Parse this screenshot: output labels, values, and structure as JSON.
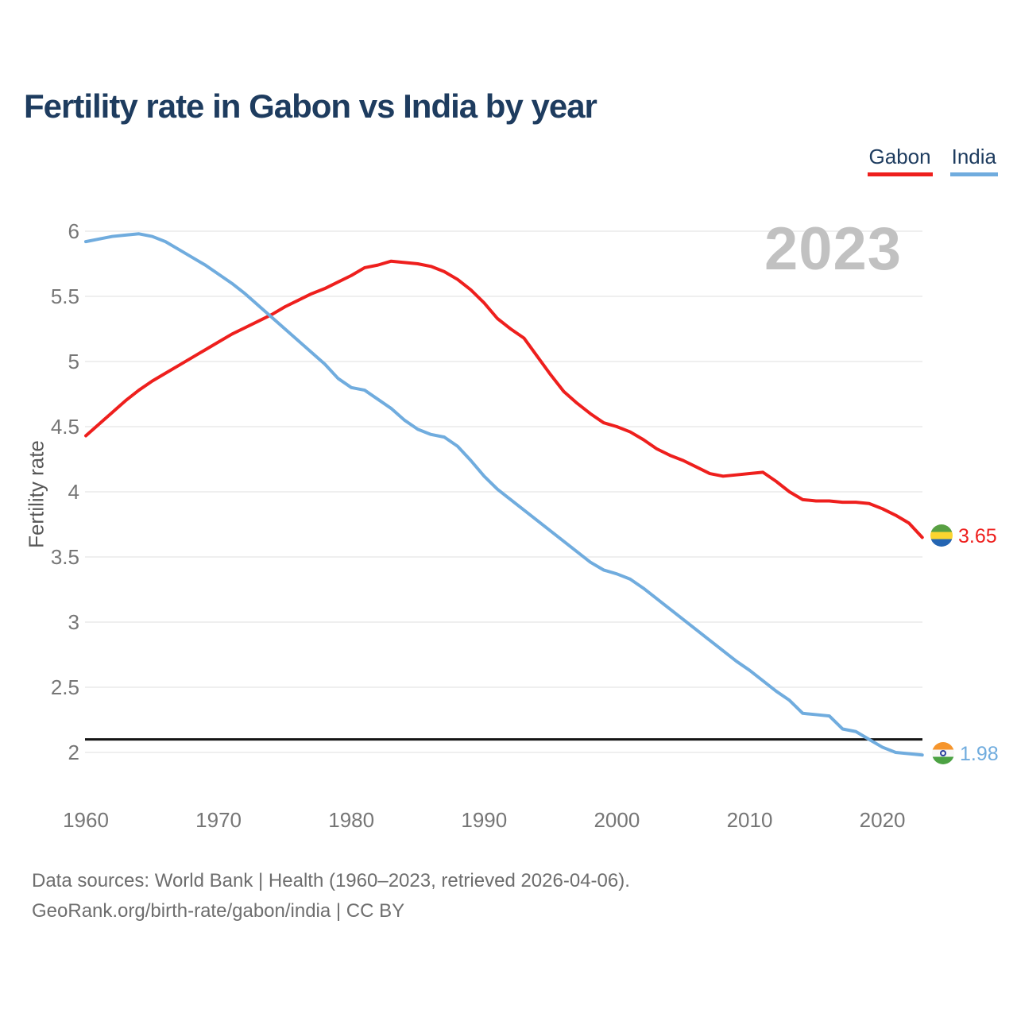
{
  "title": "Fertility rate in Gabon vs India by year",
  "watermark": "2023",
  "legend": {
    "items": [
      {
        "label": "Gabon",
        "color": "#ee1f1d"
      },
      {
        "label": "India",
        "color": "#70acde"
      }
    ]
  },
  "end_labels": {
    "gabon": {
      "value": "3.65",
      "color": "#ee1f1d",
      "flag_colors": [
        "#58a043",
        "#fbd530",
        "#2465b2"
      ]
    },
    "india": {
      "value": "1.98",
      "color": "#70acde",
      "flag_colors": [
        "#f6952c",
        "#f7f7f7",
        "#4ca243"
      ],
      "chakra_color": "#2b3f9e"
    }
  },
  "footer": {
    "line1": "Data sources: World Bank | Health (1960–2023, retrieved 2026-04-06).",
    "line2": "GeoRank.org/birth-rate/gabon/india | CC BY"
  },
  "chart_data": {
    "type": "line",
    "title": "Fertility rate in Gabon vs India by year",
    "xlabel": "",
    "ylabel": "Fertility rate",
    "xlim": [
      1960,
      2023
    ],
    "ylim": [
      2,
      6
    ],
    "grid": true,
    "legend_position": "top-right",
    "x_ticks": [
      1960,
      1970,
      1980,
      1990,
      2000,
      2010,
      2020
    ],
    "y_ticks": [
      6,
      5.5,
      5,
      4.5,
      4,
      3.5,
      3,
      2.5,
      2
    ],
    "reference_line": {
      "value": 2.1,
      "color": "#141414"
    },
    "x": [
      1960,
      1961,
      1962,
      1963,
      1964,
      1965,
      1966,
      1967,
      1968,
      1969,
      1970,
      1971,
      1972,
      1973,
      1974,
      1975,
      1976,
      1977,
      1978,
      1979,
      1980,
      1981,
      1982,
      1983,
      1984,
      1985,
      1986,
      1987,
      1988,
      1989,
      1990,
      1991,
      1992,
      1993,
      1994,
      1995,
      1996,
      1997,
      1998,
      1999,
      2000,
      2001,
      2002,
      2003,
      2004,
      2005,
      2006,
      2007,
      2008,
      2009,
      2010,
      2011,
      2012,
      2013,
      2014,
      2015,
      2016,
      2017,
      2018,
      2019,
      2020,
      2021,
      2022,
      2023
    ],
    "series": [
      {
        "name": "Gabon",
        "color": "#ee1f1d",
        "end_label": "3.65",
        "values": [
          4.43,
          4.52,
          4.61,
          4.7,
          4.78,
          4.85,
          4.91,
          4.97,
          5.03,
          5.09,
          5.15,
          5.21,
          5.26,
          5.31,
          5.36,
          5.42,
          5.47,
          5.52,
          5.56,
          5.61,
          5.66,
          5.72,
          5.74,
          5.77,
          5.76,
          5.75,
          5.73,
          5.69,
          5.63,
          5.55,
          5.45,
          5.33,
          5.25,
          5.18,
          5.04,
          4.9,
          4.77,
          4.68,
          4.6,
          4.53,
          4.5,
          4.46,
          4.4,
          4.33,
          4.28,
          4.24,
          4.19,
          4.14,
          4.12,
          4.13,
          4.14,
          4.15,
          4.08,
          4.0,
          3.94,
          3.93,
          3.93,
          3.92,
          3.92,
          3.91,
          3.87,
          3.82,
          3.76,
          3.65
        ]
      },
      {
        "name": "India",
        "color": "#70acde",
        "end_label": "1.98",
        "values": [
          5.92,
          5.94,
          5.96,
          5.97,
          5.98,
          5.96,
          5.92,
          5.86,
          5.8,
          5.74,
          5.67,
          5.6,
          5.52,
          5.43,
          5.34,
          5.25,
          5.16,
          5.07,
          4.98,
          4.87,
          4.8,
          4.78,
          4.71,
          4.64,
          4.55,
          4.48,
          4.44,
          4.42,
          4.35,
          4.24,
          4.12,
          4.02,
          3.94,
          3.86,
          3.78,
          3.7,
          3.62,
          3.54,
          3.46,
          3.4,
          3.37,
          3.33,
          3.26,
          3.18,
          3.1,
          3.02,
          2.94,
          2.86,
          2.78,
          2.7,
          2.63,
          2.55,
          2.47,
          2.4,
          2.3,
          2.29,
          2.28,
          2.18,
          2.16,
          2.1,
          2.04,
          2.0,
          1.99,
          1.98
        ]
      }
    ]
  },
  "style": {
    "grid_color": "#eaeaea",
    "tick_color": "#767676",
    "title_color": "#1e3c5f",
    "watermark_color": "#c1c1c1"
  }
}
